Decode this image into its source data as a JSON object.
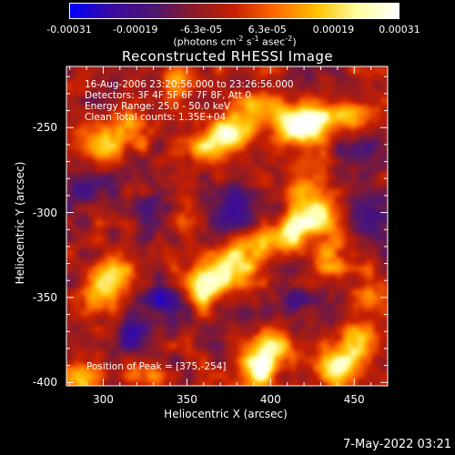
{
  "colorbar": {
    "ticks": [
      "-0.00031",
      "-0.00019",
      "-6.3e-05",
      "6.3e-05",
      "0.00019",
      "0.00031"
    ],
    "unit_prefix": "(photons cm",
    "unit_exp1": "-2",
    "unit_mid1": " s",
    "unit_exp2": "-1",
    "unit_mid2": " asec",
    "unit_exp3": "-2",
    "unit_suffix": ")",
    "colors": [
      "#0000ff",
      "#3a0aa0",
      "#4b1673",
      "#8a1a2a",
      "#c72000",
      "#ff6a00",
      "#ffc000",
      "#ffffa0",
      "#ffffff"
    ]
  },
  "chart_data": {
    "type": "heatmap",
    "title": "Reconstructed RHESSI Image",
    "xlabel": "Heliocentric X (arcsec)",
    "ylabel": "Heliocentric Y (arcsec)",
    "xlim": [
      278,
      470
    ],
    "ylim": [
      -402,
      -214
    ],
    "xticks": [
      "300",
      "350",
      "400",
      "450"
    ],
    "yticks": [
      "-250",
      "-300",
      "-350",
      "-400"
    ],
    "xtick_values": [
      300,
      350,
      400,
      450
    ],
    "ytick_values": [
      -250,
      -300,
      -350,
      -400
    ],
    "info_lines": [
      "16-Aug-2006 23:20:56.000 to 23:26:56.000",
      "Detectors: 3F 4F 5F 6F 7F 8F, Att 0",
      "Energy Range: 25.0 - 50.0 keV",
      "Clean     Total counts: 1.35E+04"
    ],
    "peak_text": "Position of Peak = [375,-254]",
    "peak": [
      375,
      -254
    ],
    "bright_sources": [
      {
        "x": 425,
        "y": -248,
        "amp": 1.0
      },
      {
        "x": 412,
        "y": -248,
        "amp": 0.75
      },
      {
        "x": 447,
        "y": -242,
        "amp": 0.6
      },
      {
        "x": 375,
        "y": -254,
        "amp": 1.0
      },
      {
        "x": 392,
        "y": -240,
        "amp": 0.7
      },
      {
        "x": 360,
        "y": -262,
        "amp": 0.55
      },
      {
        "x": 318,
        "y": -250,
        "amp": 0.6
      },
      {
        "x": 300,
        "y": -262,
        "amp": 0.55
      },
      {
        "x": 345,
        "y": -222,
        "amp": 0.5
      },
      {
        "x": 358,
        "y": -343,
        "amp": 0.95
      },
      {
        "x": 374,
        "y": -333,
        "amp": 0.8
      },
      {
        "x": 390,
        "y": -322,
        "amp": 0.6
      },
      {
        "x": 412,
        "y": -312,
        "amp": 0.8
      },
      {
        "x": 428,
        "y": -302,
        "amp": 0.7
      },
      {
        "x": 436,
        "y": -325,
        "amp": 0.55
      },
      {
        "x": 305,
        "y": -338,
        "amp": 0.75
      },
      {
        "x": 296,
        "y": -350,
        "amp": 0.55
      },
      {
        "x": 440,
        "y": -392,
        "amp": 0.95
      },
      {
        "x": 452,
        "y": -378,
        "amp": 0.6
      },
      {
        "x": 392,
        "y": -392,
        "amp": 1.0
      },
      {
        "x": 405,
        "y": -378,
        "amp": 0.75
      },
      {
        "x": 325,
        "y": -395,
        "amp": 0.45
      },
      {
        "x": 283,
        "y": -398,
        "amp": 0.55
      },
      {
        "x": 420,
        "y": -283,
        "amp": 0.45
      },
      {
        "x": 345,
        "y": -300,
        "amp": 0.3
      },
      {
        "x": 458,
        "y": -348,
        "amp": 0.45
      }
    ],
    "dim_sources": [
      {
        "x": 330,
        "y": -300,
        "amp": 0.6
      },
      {
        "x": 292,
        "y": -285,
        "amp": 0.55
      },
      {
        "x": 380,
        "y": -300,
        "amp": 0.5
      },
      {
        "x": 338,
        "y": -352,
        "amp": 0.55
      },
      {
        "x": 460,
        "y": -300,
        "amp": 0.45
      },
      {
        "x": 455,
        "y": -262,
        "amp": 0.5
      },
      {
        "x": 412,
        "y": -355,
        "amp": 0.45
      },
      {
        "x": 318,
        "y": -372,
        "amp": 0.45
      }
    ]
  },
  "footer": "7-May-2022 03:21"
}
